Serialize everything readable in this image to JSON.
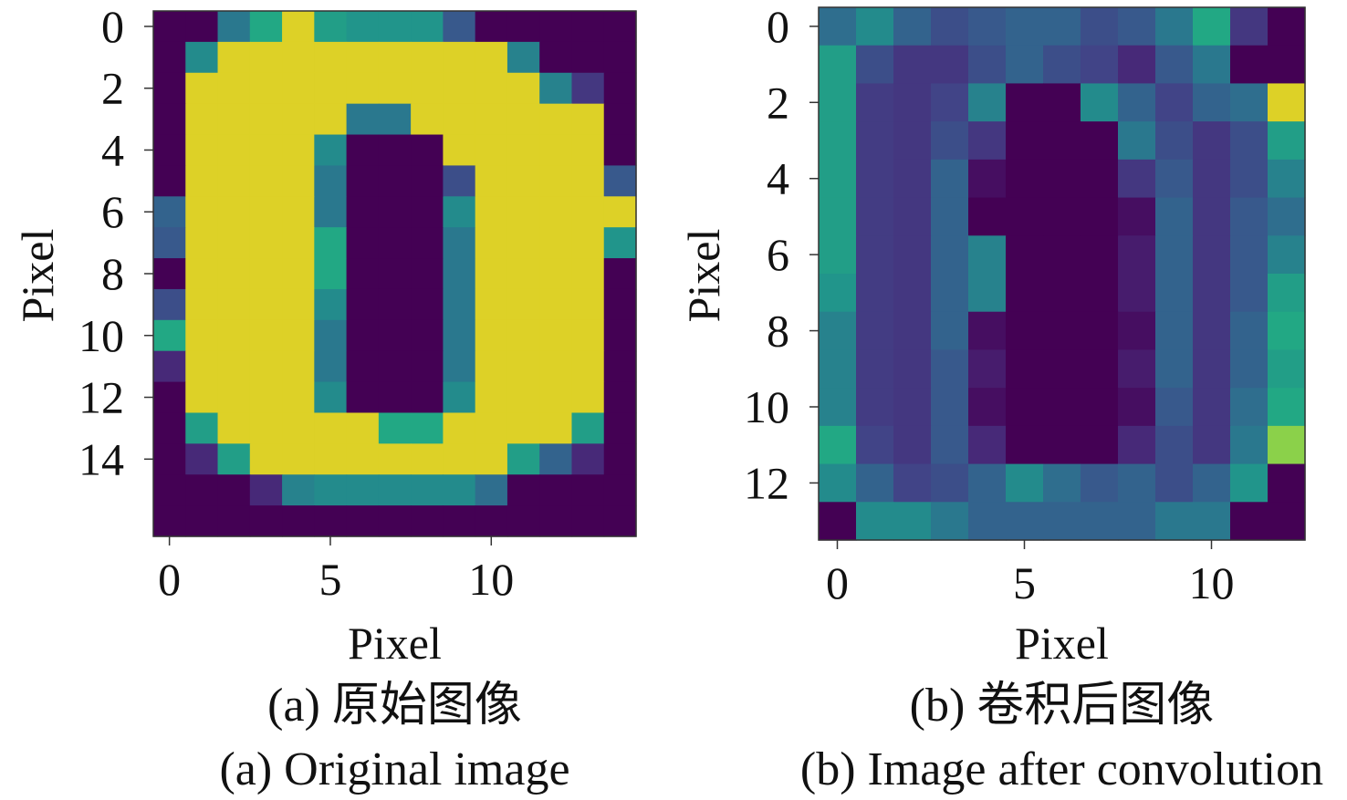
{
  "chart_data": [
    {
      "type": "heatmap",
      "panel_label": "(a) 原始图像",
      "title": "(a) Original image",
      "xlabel": "Pixel",
      "ylabel": "Pixel",
      "xlim": [
        -0.5,
        14.5
      ],
      "ylim": [
        16.5,
        -0.5
      ],
      "xticks": [
        0,
        5,
        10
      ],
      "yticks": [
        0,
        2,
        4,
        6,
        8,
        10,
        12,
        14
      ],
      "colormap": "viridis",
      "value_range": [
        0,
        1
      ],
      "grid": false,
      "rows": 17,
      "cols": 15,
      "values": [
        [
          0.0,
          0.0,
          0.5,
          0.75,
          1.0,
          0.7,
          0.65,
          0.65,
          0.65,
          0.35,
          0.0,
          0.0,
          0.0,
          0.0,
          0.0
        ],
        [
          0.0,
          0.6,
          1.0,
          1.0,
          1.0,
          1.0,
          1.0,
          1.0,
          1.0,
          1.0,
          1.0,
          0.55,
          0.0,
          0.0,
          0.0
        ],
        [
          0.0,
          1.0,
          1.0,
          1.0,
          1.0,
          1.0,
          1.0,
          1.0,
          1.0,
          1.0,
          1.0,
          1.0,
          0.55,
          0.2,
          0.0
        ],
        [
          0.0,
          1.0,
          1.0,
          1.0,
          1.0,
          1.0,
          0.5,
          0.5,
          1.0,
          1.0,
          1.0,
          1.0,
          1.0,
          1.0,
          0.0
        ],
        [
          0.0,
          1.0,
          1.0,
          1.0,
          1.0,
          0.6,
          0.0,
          0.0,
          0.0,
          1.0,
          1.0,
          1.0,
          1.0,
          1.0,
          0.0
        ],
        [
          0.0,
          1.0,
          1.0,
          1.0,
          1.0,
          0.5,
          0.0,
          0.0,
          0.0,
          0.3,
          1.0,
          1.0,
          1.0,
          1.0,
          0.35
        ],
        [
          0.4,
          1.0,
          1.0,
          1.0,
          1.0,
          0.5,
          0.0,
          0.0,
          0.0,
          0.6,
          1.0,
          1.0,
          1.0,
          1.0,
          1.0
        ],
        [
          0.35,
          1.0,
          1.0,
          1.0,
          1.0,
          0.75,
          0.0,
          0.0,
          0.0,
          0.5,
          1.0,
          1.0,
          1.0,
          1.0,
          0.65
        ],
        [
          0.0,
          1.0,
          1.0,
          1.0,
          1.0,
          0.75,
          0.0,
          0.0,
          0.0,
          0.5,
          1.0,
          1.0,
          1.0,
          1.0,
          0.0
        ],
        [
          0.3,
          1.0,
          1.0,
          1.0,
          1.0,
          0.6,
          0.0,
          0.0,
          0.0,
          0.5,
          1.0,
          1.0,
          1.0,
          1.0,
          0.0
        ],
        [
          0.75,
          1.0,
          1.0,
          1.0,
          1.0,
          0.5,
          0.0,
          0.0,
          0.0,
          0.5,
          1.0,
          1.0,
          1.0,
          1.0,
          0.0
        ],
        [
          0.15,
          1.0,
          1.0,
          1.0,
          1.0,
          0.5,
          0.0,
          0.0,
          0.0,
          0.5,
          1.0,
          1.0,
          1.0,
          1.0,
          0.0
        ],
        [
          0.0,
          1.0,
          1.0,
          1.0,
          1.0,
          0.6,
          0.0,
          0.0,
          0.0,
          0.6,
          1.0,
          1.0,
          1.0,
          1.0,
          0.0
        ],
        [
          0.0,
          0.7,
          1.0,
          1.0,
          1.0,
          1.0,
          1.0,
          0.75,
          0.75,
          1.0,
          1.0,
          1.0,
          1.0,
          0.7,
          0.0
        ],
        [
          0.0,
          0.15,
          0.7,
          1.0,
          1.0,
          1.0,
          1.0,
          1.0,
          1.0,
          1.0,
          1.0,
          0.7,
          0.4,
          0.15,
          0.0
        ],
        [
          0.0,
          0.0,
          0.0,
          0.15,
          0.55,
          0.6,
          0.6,
          0.6,
          0.6,
          0.6,
          0.45,
          0.0,
          0.0,
          0.0,
          0.0
        ],
        [
          0.0,
          0.0,
          0.0,
          0.0,
          0.0,
          0.0,
          0.0,
          0.0,
          0.0,
          0.0,
          0.0,
          0.0,
          0.0,
          0.0,
          0.0
        ]
      ]
    },
    {
      "type": "heatmap",
      "panel_label": "(b) 卷积后图像",
      "title": "(b) Image after convolution",
      "xlabel": "Pixel",
      "ylabel": "Pixel",
      "xlim": [
        -0.5,
        12.5
      ],
      "ylim": [
        13.5,
        -0.5
      ],
      "xticks": [
        0,
        5,
        10
      ],
      "yticks": [
        0,
        2,
        4,
        6,
        8,
        10,
        12
      ],
      "colormap": "viridis",
      "value_range": [
        0,
        1
      ],
      "grid": false,
      "rows": 14,
      "cols": 13,
      "values": [
        [
          0.45,
          0.6,
          0.4,
          0.3,
          0.35,
          0.4,
          0.4,
          0.3,
          0.35,
          0.5,
          0.75,
          0.2,
          0.0
        ],
        [
          0.7,
          0.3,
          0.2,
          0.2,
          0.3,
          0.4,
          0.3,
          0.25,
          0.15,
          0.35,
          0.5,
          0.0,
          0.0
        ],
        [
          0.7,
          0.22,
          0.2,
          0.25,
          0.55,
          0.0,
          0.0,
          0.6,
          0.4,
          0.25,
          0.4,
          0.45,
          1.0
        ],
        [
          0.7,
          0.22,
          0.2,
          0.3,
          0.2,
          0.0,
          0.0,
          0.0,
          0.5,
          0.3,
          0.2,
          0.3,
          0.7
        ],
        [
          0.7,
          0.22,
          0.2,
          0.4,
          0.05,
          0.0,
          0.0,
          0.0,
          0.2,
          0.35,
          0.2,
          0.3,
          0.55
        ],
        [
          0.7,
          0.22,
          0.2,
          0.4,
          0.0,
          0.0,
          0.0,
          0.0,
          0.05,
          0.4,
          0.2,
          0.35,
          0.45
        ],
        [
          0.7,
          0.22,
          0.2,
          0.4,
          0.55,
          0.0,
          0.0,
          0.0,
          0.1,
          0.4,
          0.2,
          0.35,
          0.55
        ],
        [
          0.65,
          0.22,
          0.2,
          0.4,
          0.55,
          0.0,
          0.0,
          0.0,
          0.1,
          0.4,
          0.2,
          0.35,
          0.7
        ],
        [
          0.55,
          0.22,
          0.2,
          0.4,
          0.05,
          0.0,
          0.0,
          0.0,
          0.05,
          0.4,
          0.2,
          0.4,
          0.75
        ],
        [
          0.55,
          0.22,
          0.2,
          0.35,
          0.1,
          0.0,
          0.0,
          0.0,
          0.1,
          0.4,
          0.2,
          0.4,
          0.7
        ],
        [
          0.55,
          0.22,
          0.2,
          0.35,
          0.05,
          0.0,
          0.0,
          0.0,
          0.05,
          0.35,
          0.2,
          0.45,
          0.75
        ],
        [
          0.75,
          0.25,
          0.2,
          0.35,
          0.15,
          0.0,
          0.0,
          0.0,
          0.15,
          0.3,
          0.2,
          0.5,
          0.9
        ],
        [
          0.6,
          0.4,
          0.25,
          0.3,
          0.4,
          0.6,
          0.45,
          0.35,
          0.4,
          0.3,
          0.4,
          0.65,
          0.0
        ],
        [
          0.0,
          0.6,
          0.6,
          0.5,
          0.4,
          0.4,
          0.4,
          0.4,
          0.4,
          0.5,
          0.5,
          0.0,
          0.0
        ]
      ]
    }
  ]
}
